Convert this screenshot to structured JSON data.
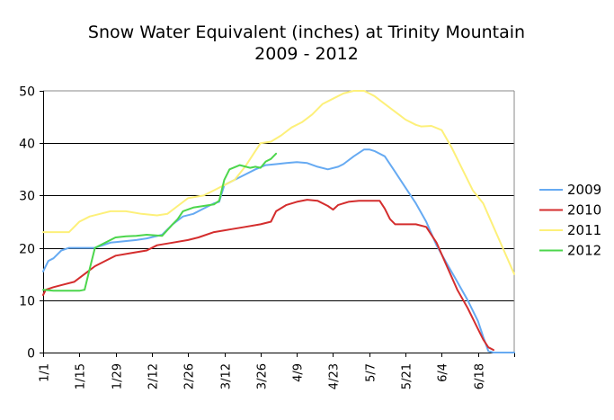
{
  "chart_data": {
    "type": "line",
    "title": "Snow Water Equivalent (inches) at Trinity Mountain",
    "subtitle": "2009 - 2012",
    "xlabel": "",
    "ylabel": "",
    "ylim": [
      0,
      50
    ],
    "yticks": [
      0,
      10,
      20,
      30,
      40,
      50
    ],
    "x_unit": "days since Jan 1",
    "xlim": [
      0,
      182
    ],
    "xticks": [
      {
        "day": 0,
        "label": "1/1"
      },
      {
        "day": 14,
        "label": "1/15"
      },
      {
        "day": 28,
        "label": "1/29"
      },
      {
        "day": 42,
        "label": "2/12"
      },
      {
        "day": 56,
        "label": "2/26"
      },
      {
        "day": 70,
        "label": "3/12"
      },
      {
        "day": 84,
        "label": "3/26"
      },
      {
        "day": 98,
        "label": "4/9"
      },
      {
        "day": 112,
        "label": "4/23"
      },
      {
        "day": 126,
        "label": "5/7"
      },
      {
        "day": 140,
        "label": "5/21"
      },
      {
        "day": 154,
        "label": "6/4"
      },
      {
        "day": 168,
        "label": "6/18"
      }
    ],
    "grid": "horizontal",
    "legend": "right",
    "series": [
      {
        "name": "2009",
        "color": "#66aaf2",
        "x": [
          0,
          2,
          4,
          7,
          10,
          14,
          20,
          26,
          30,
          36,
          40,
          46,
          50,
          54,
          58,
          62,
          66,
          68,
          70,
          72,
          74,
          78,
          82,
          86,
          90,
          94,
          98,
          102,
          106,
          110,
          114,
          116,
          120,
          124,
          126,
          128,
          132,
          136,
          140,
          144,
          148,
          152,
          156,
          160,
          164,
          168,
          170,
          172,
          174,
          182
        ],
        "values": [
          15.5,
          17.5,
          18,
          19.5,
          20,
          20,
          20,
          21,
          21.2,
          21.5,
          21.8,
          22.5,
          24.5,
          26,
          26.5,
          27.5,
          28.5,
          28.8,
          32,
          32.5,
          33,
          34,
          35,
          35.8,
          36,
          36.2,
          36.4,
          36.2,
          35.5,
          35,
          35.5,
          36,
          37.5,
          38.8,
          38.8,
          38.5,
          37.5,
          34.5,
          31.5,
          28.5,
          25,
          20.5,
          17,
          13.5,
          10,
          6,
          3,
          0.3,
          0,
          0
        ]
      },
      {
        "name": "2010",
        "color": "#d42d2d",
        "x": [
          0,
          1,
          4,
          8,
          12,
          16,
          20,
          24,
          28,
          34,
          40,
          44,
          50,
          56,
          60,
          66,
          72,
          78,
          84,
          88,
          90,
          94,
          98,
          102,
          106,
          110,
          112,
          114,
          118,
          122,
          126,
          130,
          132,
          134,
          136,
          140,
          144,
          148,
          152,
          156,
          160,
          164,
          168,
          170,
          172,
          174
        ],
        "values": [
          11,
          12,
          12.5,
          13,
          13.5,
          15,
          16.5,
          17.5,
          18.5,
          19,
          19.5,
          20.5,
          21,
          21.5,
          22,
          23,
          23.5,
          24,
          24.5,
          25,
          27,
          28.2,
          28.8,
          29.2,
          29,
          28,
          27.3,
          28.2,
          28.8,
          29,
          29,
          29,
          27.5,
          25.5,
          24.5,
          24.5,
          24.5,
          24,
          21,
          16.5,
          12,
          8.5,
          4.5,
          2.5,
          1,
          0.5
        ]
      },
      {
        "name": "2011",
        "color": "#fdf07a",
        "x": [
          0,
          10,
          14,
          18,
          22,
          26,
          32,
          38,
          44,
          48,
          52,
          56,
          62,
          66,
          70,
          74,
          78,
          84,
          88,
          92,
          96,
          100,
          104,
          108,
          112,
          116,
          120,
          124,
          126,
          128,
          132,
          136,
          140,
          144,
          146,
          150,
          154,
          158,
          162,
          166,
          170,
          174,
          178,
          182
        ],
        "values": [
          23,
          23,
          25,
          26,
          26.5,
          27,
          27,
          26.5,
          26.2,
          26.5,
          28,
          29.5,
          30,
          31,
          32,
          33,
          35.5,
          40,
          40.3,
          41.5,
          43,
          44,
          45.5,
          47.5,
          48.5,
          49.5,
          50,
          50,
          49.5,
          49,
          47.5,
          46,
          44.5,
          43.5,
          43.2,
          43.3,
          42.5,
          39,
          35,
          31,
          28.5,
          24,
          19.5,
          15
        ]
      },
      {
        "name": "2012",
        "color": "#4cd64c",
        "x": [
          0,
          4,
          8,
          12,
          14,
          16,
          18,
          20,
          24,
          28,
          32,
          36,
          40,
          46,
          50,
          52,
          54,
          58,
          62,
          66,
          68,
          70,
          72,
          76,
          80,
          82,
          84,
          86,
          88,
          90
        ],
        "values": [
          12,
          11.8,
          11.8,
          11.8,
          11.8,
          12,
          16,
          20,
          21,
          22,
          22.2,
          22.3,
          22.5,
          22.3,
          24.5,
          25.5,
          27,
          27.7,
          28,
          28.3,
          29,
          33,
          35,
          35.8,
          35.3,
          35.5,
          35.3,
          36.5,
          37,
          38
        ]
      }
    ]
  }
}
